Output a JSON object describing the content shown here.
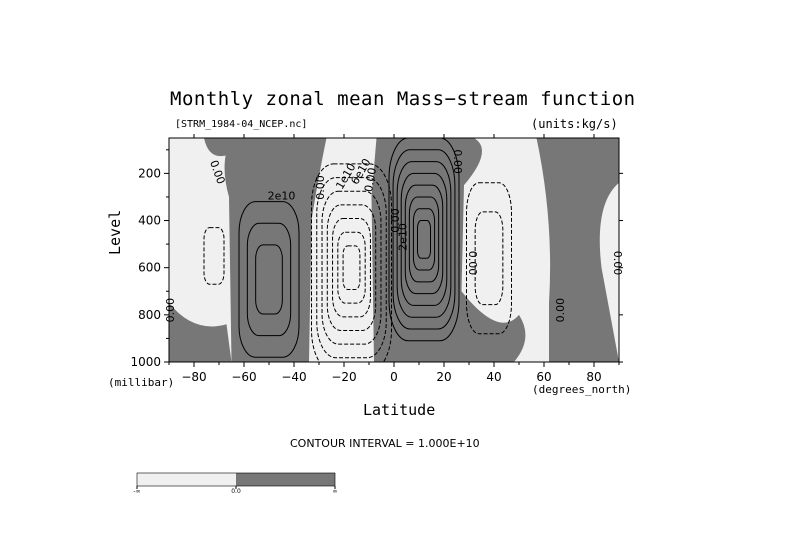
{
  "figure": {
    "title": "Monthly zonal mean Mass−stream function",
    "subtitle_left": "[STRM_1984-04_NCEP.nc]",
    "subtitle_right": "(units:kg/s)",
    "ylabel": "Level",
    "yunit": "(millibar)",
    "xlabel": "Latitude",
    "xunit": "(degrees_north)",
    "contour_interval": "CONTOUR INTERVAL = 1.000E+10"
  },
  "chart_data": {
    "type": "contour",
    "title": "Monthly zonal mean Mass−stream function",
    "xlabel": "Latitude",
    "ylabel": "Level",
    "xlim": [
      -90,
      90
    ],
    "ylim": [
      1000,
      50
    ],
    "y_inverted": true,
    "x_ticks": [
      -80,
      -60,
      -40,
      -20,
      0,
      20,
      40,
      60,
      80
    ],
    "x_tick_labels": [
      "−80",
      "−60",
      "−40",
      "−20",
      "0",
      "20",
      "40",
      "60",
      "80"
    ],
    "y_ticks": [
      200,
      400,
      600,
      800,
      1000
    ],
    "y_tick_labels": [
      "200",
      "400",
      "600",
      "800",
      "1000"
    ],
    "contour_interval": 10000000000,
    "shading": {
      "negative": "#f0f0f0",
      "positive": "#777777"
    },
    "cells": [
      {
        "center_lat": -50,
        "center_p": 650,
        "sign": "positive",
        "levels": 3,
        "half_width_deg": 12,
        "half_height_hpa": 330
      },
      {
        "center_lat": -17,
        "center_p": 600,
        "sign": "negative",
        "levels": 7,
        "half_width_deg": 16,
        "half_height_hpa": 440
      },
      {
        "center_lat": 12,
        "center_p": 480,
        "sign": "positive",
        "levels": 8,
        "half_width_deg": 14,
        "half_height_hpa": 430
      },
      {
        "center_lat": 38,
        "center_p": 560,
        "sign": "negative",
        "levels": 2,
        "half_width_deg": 9,
        "half_height_hpa": 320
      },
      {
        "center_lat": -72,
        "center_p": 550,
        "sign": "negative",
        "levels": 1,
        "half_width_deg": 4,
        "half_height_hpa": 120
      }
    ],
    "contour_labels": [
      "0.00",
      "2e10",
      "0.00",
      "1e10",
      "6e10",
      "0.00",
      "0.00",
      "2e10",
      "0.00",
      "0.00",
      "0.00",
      "0.00",
      "0.00"
    ],
    "colorbar": {
      "labels": [
        "-∞",
        "0.0",
        "∞"
      ],
      "colors": [
        "#f0f0f0",
        "#777777"
      ]
    }
  }
}
